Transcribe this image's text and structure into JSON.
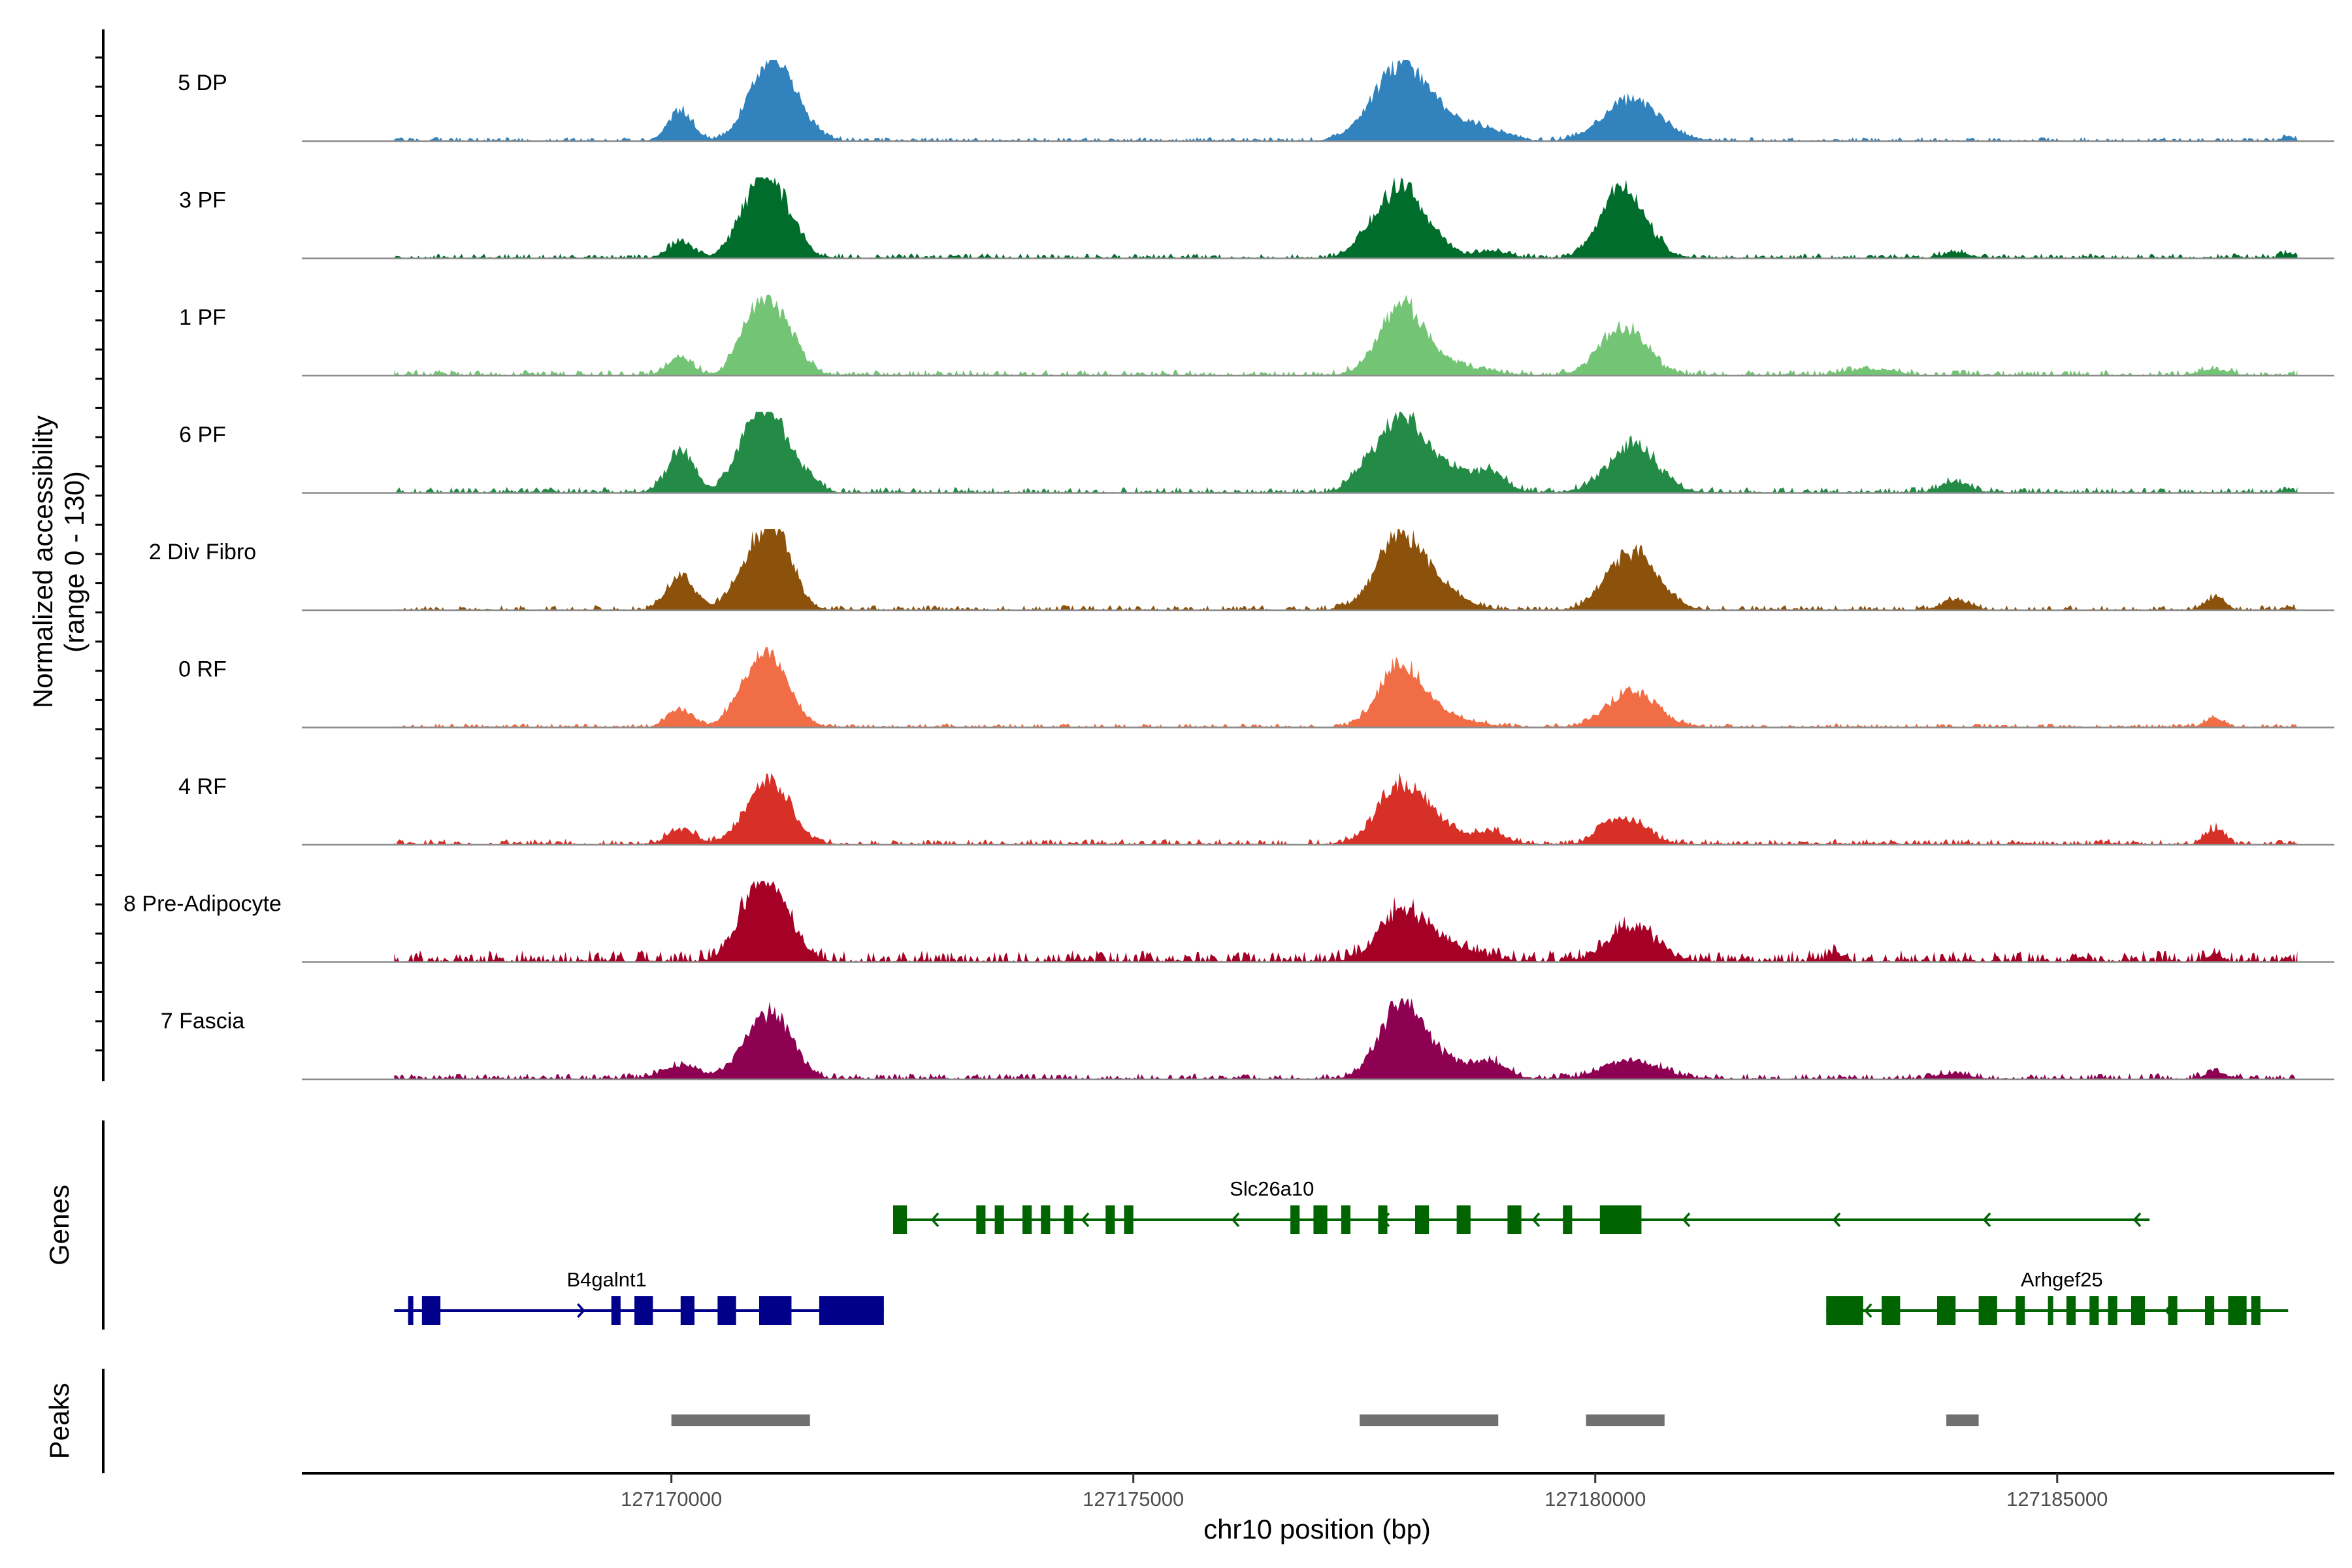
{
  "chart_data": {
    "type": "area",
    "title": "",
    "ylabel": "Normalized accessibility",
    "ylabel_range": "(range 0 - 130)",
    "yrange": [
      0,
      130
    ],
    "xlabel": "chr10 position (bp)",
    "xlim": [
      127166000,
      127188000
    ],
    "xticks": [
      127170000,
      127175000,
      127180000,
      127185000
    ],
    "xtick_labels": [
      "127170000",
      "127175000",
      "127180000",
      "127185000"
    ],
    "track_start": 127167000,
    "track_end": 127187600,
    "series": [
      {
        "name": "5 DP",
        "color": "#3182bd",
        "noise": 4,
        "peaks": [
          [
            127170100,
            50,
            130
          ],
          [
            127171000,
            70,
            210
          ],
          [
            127171200,
            78,
            230
          ],
          [
            127177900,
            120,
            300
          ],
          [
            127178500,
            22,
            250
          ],
          [
            127178900,
            12,
            200
          ],
          [
            127180400,
            68,
            300
          ],
          [
            127187500,
            7,
            60
          ]
        ]
      },
      {
        "name": "3 PF",
        "color": "#006d2c",
        "noise": 5,
        "peaks": [
          [
            127170100,
            27,
            120
          ],
          [
            127170900,
            80,
            200
          ],
          [
            127171150,
            82,
            200
          ],
          [
            127177500,
            20,
            160
          ],
          [
            127177900,
            115,
            230
          ],
          [
            127178300,
            15,
            200
          ],
          [
            127178900,
            12,
            150
          ],
          [
            127180200,
            62,
            200
          ],
          [
            127180400,
            60,
            230
          ],
          [
            127183900,
            8,
            150
          ],
          [
            127187500,
            7,
            80
          ]
        ]
      },
      {
        "name": "1 PF",
        "color": "#74c476",
        "noise": 6,
        "peaks": [
          [
            127170100,
            28,
            130
          ],
          [
            127170900,
            75,
            180
          ],
          [
            127171150,
            85,
            200
          ],
          [
            127177900,
            105,
            240
          ],
          [
            127178400,
            17,
            350
          ],
          [
            127180300,
            75,
            250
          ],
          [
            127183000,
            10,
            250
          ],
          [
            127186700,
            10,
            150
          ]
        ]
      },
      {
        "name": "6 PF",
        "color": "#238b45",
        "noise": 6,
        "peaks": [
          [
            127170100,
            70,
            140
          ],
          [
            127170900,
            90,
            200
          ],
          [
            127171150,
            75,
            200
          ],
          [
            127171500,
            14,
            120
          ],
          [
            127177500,
            25,
            160
          ],
          [
            127177900,
            110,
            230
          ],
          [
            127178400,
            38,
            350
          ],
          [
            127178900,
            18,
            150
          ],
          [
            127180400,
            78,
            260
          ],
          [
            127183900,
            18,
            150
          ],
          [
            127187500,
            5,
            60
          ]
        ]
      },
      {
        "name": "2 Div Fibro",
        "color": "#8c510a",
        "noise": 5,
        "peaks": [
          [
            127170100,
            55,
            140
          ],
          [
            127170900,
            75,
            210
          ],
          [
            127171150,
            100,
            180
          ],
          [
            127177900,
            118,
            260
          ],
          [
            127178400,
            20,
            250
          ],
          [
            127180400,
            95,
            260
          ],
          [
            127183900,
            16,
            150
          ],
          [
            127186700,
            20,
            100
          ],
          [
            127187500,
            5,
            60
          ]
        ]
      },
      {
        "name": "0 RF",
        "color": "#f16d45",
        "noise": 4,
        "peaks": [
          [
            127170100,
            30,
            130
          ],
          [
            127170900,
            80,
            200
          ],
          [
            127171150,
            65,
            200
          ],
          [
            127177900,
            100,
            230
          ],
          [
            127178400,
            15,
            300
          ],
          [
            127180400,
            60,
            260
          ],
          [
            127186700,
            14,
            100
          ]
        ]
      },
      {
        "name": "4 RF",
        "color": "#d73027",
        "noise": 6,
        "peaks": [
          [
            127170100,
            25,
            140
          ],
          [
            127170900,
            45,
            200
          ],
          [
            127171150,
            75,
            200
          ],
          [
            127177900,
            95,
            250
          ],
          [
            127178400,
            20,
            300
          ],
          [
            127178900,
            17,
            130
          ],
          [
            127180100,
            22,
            140
          ],
          [
            127180400,
            35,
            200
          ],
          [
            127186700,
            25,
            100
          ]
        ]
      },
      {
        "name": "8 Pre-Adipocyte",
        "color": "#a50026",
        "noise": 12,
        "peaks": [
          [
            127170900,
            88,
            200
          ],
          [
            127171150,
            70,
            200
          ],
          [
            127177900,
            75,
            250
          ],
          [
            127178400,
            25,
            300
          ],
          [
            127180400,
            52,
            260
          ],
          [
            127182600,
            14,
            70
          ],
          [
            127186700,
            10,
            80
          ]
        ]
      },
      {
        "name": "7 Fascia",
        "color": "#8e0152",
        "noise": 6,
        "peaks": [
          [
            127170100,
            22,
            200
          ],
          [
            127170900,
            55,
            200
          ],
          [
            127171150,
            75,
            200
          ],
          [
            127177900,
            115,
            230
          ],
          [
            127178400,
            28,
            350
          ],
          [
            127178900,
            18,
            150
          ],
          [
            127180400,
            30,
            300
          ],
          [
            127183900,
            10,
            150
          ],
          [
            127186700,
            12,
            100
          ]
        ]
      }
    ],
    "genes_track": {
      "label": "Genes",
      "genes": [
        {
          "name": "Slc26a10",
          "strand": "-",
          "color": "#006400",
          "start": 127172400,
          "end": 127186000,
          "row": 0,
          "exons": [
            [
              127172400,
              127172550
            ],
            [
              127173300,
              127173400
            ],
            [
              127173500,
              127173600
            ],
            [
              127173800,
              127173900
            ],
            [
              127174000,
              127174100
            ],
            [
              127174250,
              127174350
            ],
            [
              127174700,
              127174800
            ],
            [
              127174900,
              127175000
            ],
            [
              127176700,
              127176800
            ],
            [
              127176950,
              127177100
            ],
            [
              127177250,
              127177350
            ],
            [
              127177650,
              127177750
            ],
            [
              127178050,
              127178200
            ],
            [
              127178500,
              127178650
            ],
            [
              127179050,
              127179200
            ],
            [
              127179650,
              127179750
            ],
            [
              127180050,
              127180500
            ]
          ]
        },
        {
          "name": "B4galnt1",
          "strand": "+",
          "color": "#00008b",
          "start": 127167000,
          "end": 127172300,
          "row": 1,
          "exons": [
            [
              127167150,
              127167200
            ],
            [
              127167300,
              127167500
            ],
            [
              127169350,
              127169450
            ],
            [
              127169600,
              127169800
            ],
            [
              127170100,
              127170250
            ],
            [
              127170500,
              127170700
            ],
            [
              127170950,
              127171300
            ],
            [
              127171600,
              127172300
            ]
          ]
        },
        {
          "name": "Arhgef25",
          "strand": "-",
          "color": "#006400",
          "start": 127182500,
          "end": 127187500,
          "row": 1,
          "exons": [
            [
              127182500,
              127182900
            ],
            [
              127183100,
              127183300
            ],
            [
              127183700,
              127183900
            ],
            [
              127184150,
              127184350
            ],
            [
              127184550,
              127184650
            ],
            [
              127184900,
              127184950
            ],
            [
              127185100,
              127185200
            ],
            [
              127185350,
              127185450
            ],
            [
              127185550,
              127185650
            ],
            [
              127185800,
              127185950
            ],
            [
              127186200,
              127186300
            ],
            [
              127186600,
              127186700
            ],
            [
              127186850,
              127187050
            ],
            [
              127187100,
              127187200
            ]
          ]
        }
      ]
    },
    "peaks_track": {
      "label": "Peaks",
      "color": "#707070",
      "regions": [
        [
          127170000,
          127171500
        ],
        [
          127177450,
          127178950
        ],
        [
          127179900,
          127180750
        ],
        [
          127183800,
          127184150
        ]
      ]
    }
  }
}
